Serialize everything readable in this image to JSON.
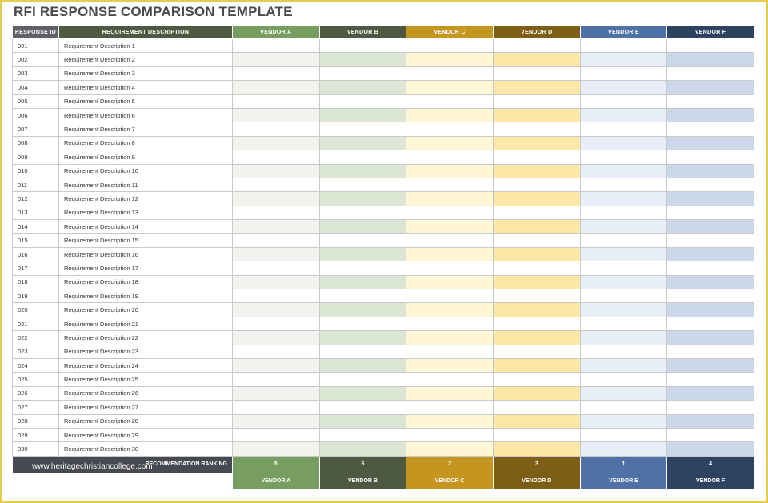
{
  "title": "RFI RESPONSE COMPARISON TEMPLATE",
  "headers": {
    "response_id": "RESPONSE ID",
    "requirement": "REQUIREMENT DESCRIPTION",
    "vendors": [
      "VENDOR A",
      "VENDOR B",
      "VENDOR C",
      "VENDOR D",
      "VENDOR E",
      "VENDOR F"
    ]
  },
  "rows": [
    {
      "id": "001",
      "desc": "Requirement Description 1"
    },
    {
      "id": "002",
      "desc": "Requirement Description 2"
    },
    {
      "id": "003",
      "desc": "Requirement Description 3"
    },
    {
      "id": "004",
      "desc": "Requirement Description 4"
    },
    {
      "id": "005",
      "desc": "Requirement Description 5"
    },
    {
      "id": "006",
      "desc": "Requirement Description 6"
    },
    {
      "id": "007",
      "desc": "Requirement Description 7"
    },
    {
      "id": "008",
      "desc": "Requirement Description 8"
    },
    {
      "id": "009",
      "desc": "Requirement Description 9"
    },
    {
      "id": "010",
      "desc": "Requirement Description 10"
    },
    {
      "id": "011",
      "desc": "Requirement Description 11"
    },
    {
      "id": "012",
      "desc": "Requirement Description 12"
    },
    {
      "id": "013",
      "desc": "Requirement Description 13"
    },
    {
      "id": "014",
      "desc": "Requirement Description 14"
    },
    {
      "id": "015",
      "desc": "Requirement Description 15"
    },
    {
      "id": "016",
      "desc": "Requirement Description 16"
    },
    {
      "id": "017",
      "desc": "Requirement Description 17"
    },
    {
      "id": "018",
      "desc": "Requirement Description 18"
    },
    {
      "id": "019",
      "desc": "Requirement Description 19"
    },
    {
      "id": "020",
      "desc": "Requirement Description 20"
    },
    {
      "id": "021",
      "desc": "Requirement Description 21"
    },
    {
      "id": "022",
      "desc": "Requirement Description 22"
    },
    {
      "id": "023",
      "desc": "Requirement Description 23"
    },
    {
      "id": "024",
      "desc": "Requirement Description 24"
    },
    {
      "id": "025",
      "desc": "Requirement Description 25"
    },
    {
      "id": "026",
      "desc": "Requirement Description 26"
    },
    {
      "id": "027",
      "desc": "Requirement Description 27"
    },
    {
      "id": "028",
      "desc": "Requirement Description 28"
    },
    {
      "id": "029",
      "desc": "Requirement Description 29"
    },
    {
      "id": "030",
      "desc": "Requirement Description 30"
    }
  ],
  "ranking": {
    "label": "RECOMMENDATION RANKING",
    "values": [
      "5",
      "6",
      "2",
      "3",
      "1",
      "4"
    ]
  },
  "footer_vendors": [
    "VENDOR A",
    "VENDOR B",
    "VENDOR C",
    "VENDOR D",
    "VENDOR E",
    "VENDOR F"
  ],
  "watermark": "www.heritagechristiancollege.com",
  "colors": {
    "vendor_a": "#789d61",
    "vendor_b": "#4e5941",
    "vendor_c": "#c4961f",
    "vendor_d": "#7e5e17",
    "vendor_e": "#4f72a6",
    "vendor_f": "#2e4261",
    "frame": "#e6cc4d"
  }
}
